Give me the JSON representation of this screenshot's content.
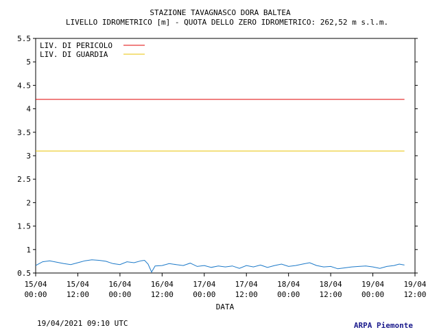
{
  "chart_data": {
    "type": "line",
    "title": "STAZIONE TAVAGNASCO DORA BALTEA",
    "subtitle": "LIVELLO IDROMETRICO [m] - QUOTA DELLO ZERO IDROMETRICO: 262,52  m s.l.m.",
    "xlabel": "DATA",
    "ylabel": "",
    "ylim": [
      0.5,
      5.5
    ],
    "yticks": [
      "0.5",
      "1",
      "1.5",
      "2",
      "2.5",
      "3",
      "3.5",
      "4",
      "4.5",
      "5",
      "5.5"
    ],
    "xlim_hours": [
      0,
      108
    ],
    "xticks": [
      {
        "day": "15/04",
        "time": "00:00"
      },
      {
        "day": "15/04",
        "time": "12:00"
      },
      {
        "day": "16/04",
        "time": "00:00"
      },
      {
        "day": "16/04",
        "time": "12:00"
      },
      {
        "day": "17/04",
        "time": "00:00"
      },
      {
        "day": "17/04",
        "time": "12:00"
      },
      {
        "day": "18/04",
        "time": "00:00"
      },
      {
        "day": "18/04",
        "time": "12:00"
      },
      {
        "day": "19/04",
        "time": "00:00"
      },
      {
        "day": "19/04",
        "time": "12:00"
      }
    ],
    "grid": false,
    "legend_position": "top-left",
    "reference_lines": [
      {
        "name": "LIV. DI PERICOLO",
        "value": 4.2,
        "color": "#e00000"
      },
      {
        "name": "LIV. DI GUARDIA",
        "value": 3.1,
        "color": "#e8c000"
      }
    ],
    "series": [
      {
        "color": "#1a78c8",
        "x": [
          0,
          2,
          4,
          6,
          8,
          10,
          12,
          14,
          16,
          18,
          20,
          22,
          24,
          26,
          28,
          30,
          31,
          32,
          33,
          34,
          36,
          38,
          40,
          42,
          44,
          46,
          48,
          50,
          52,
          54,
          56,
          58,
          60,
          62,
          64,
          66,
          68,
          70,
          72,
          74,
          76,
          78,
          80,
          82,
          84,
          86,
          88,
          90,
          92,
          94,
          96,
          98,
          100,
          102,
          103.5,
          105
        ],
        "y": [
          0.66,
          0.74,
          0.76,
          0.73,
          0.7,
          0.68,
          0.72,
          0.76,
          0.78,
          0.77,
          0.75,
          0.7,
          0.68,
          0.74,
          0.72,
          0.76,
          0.77,
          0.69,
          0.52,
          0.65,
          0.66,
          0.7,
          0.68,
          0.66,
          0.71,
          0.64,
          0.66,
          0.62,
          0.65,
          0.63,
          0.65,
          0.6,
          0.66,
          0.63,
          0.67,
          0.62,
          0.66,
          0.69,
          0.64,
          0.66,
          0.69,
          0.72,
          0.66,
          0.63,
          0.64,
          0.59,
          0.61,
          0.63,
          0.64,
          0.65,
          0.63,
          0.6,
          0.64,
          0.66,
          0.69,
          0.67
        ]
      }
    ]
  },
  "footer": {
    "timestamp": "19/04/2021 09:10 UTC",
    "credit": "ARPA Piemonte"
  }
}
